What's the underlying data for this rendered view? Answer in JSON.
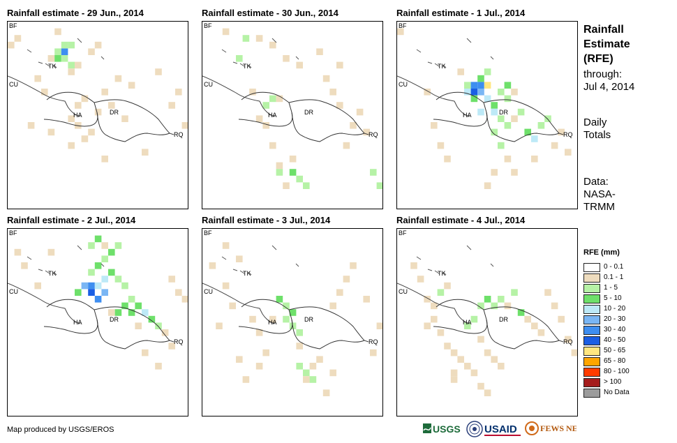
{
  "panels": [
    {
      "title": "Rainfall estimate - 29 Jun., 2014"
    },
    {
      "title": "Rainfall estimate - 30 Jun., 2014"
    },
    {
      "title": "Rainfall estimate - 1 Jul., 2014"
    },
    {
      "title": "Rainfall estimate - 2 Jul., 2014"
    },
    {
      "title": "Rainfall estimate - 3 Jul., 2014"
    },
    {
      "title": "Rainfall estimate - 4 Jul., 2014"
    }
  ],
  "map_labels": {
    "bf": "BF",
    "cu": "CU",
    "tk": "TK",
    "ha": "HA",
    "dr": "DR",
    "rq": "RQ"
  },
  "side": {
    "title_1": "Rainfall",
    "title_2": "Estimate",
    "title_3": "(RFE)",
    "through": "through:",
    "date": "Jul 4, 2014",
    "daily_1": "Daily",
    "daily_2": "Totals",
    "data_1": "Data:",
    "data_2": "NASA-",
    "data_3": "TRMM"
  },
  "legend": {
    "title": "RFE (mm)",
    "items": [
      {
        "label": "0 - 0.1",
        "color": "#ffffff"
      },
      {
        "label": "0.1 - 1",
        "color": "#eedcbe"
      },
      {
        "label": "1 - 5",
        "color": "#b6f2a6"
      },
      {
        "label": "5 - 10",
        "color": "#6ee06a"
      },
      {
        "label": "10 - 20",
        "color": "#bde9f7"
      },
      {
        "label": "20 - 30",
        "color": "#7ab6f4"
      },
      {
        "label": "30 - 40",
        "color": "#3e8ef0"
      },
      {
        "label": "40 - 50",
        "color": "#1a5ee4"
      },
      {
        "label": "50 - 65",
        "color": "#ffe680"
      },
      {
        "label": "65 - 80",
        "color": "#ffa500"
      },
      {
        "label": "80 - 100",
        "color": "#ff3c00"
      },
      {
        "label": "> 100",
        "color": "#a51c1c"
      },
      {
        "label": "No Data",
        "color": "#9c9c9c"
      }
    ]
  },
  "credit": "Map produced by USGS/EROS",
  "logos": {
    "usgs": "USGS",
    "usaid": "USAID",
    "fewsnet": "FEWS NET"
  }
}
